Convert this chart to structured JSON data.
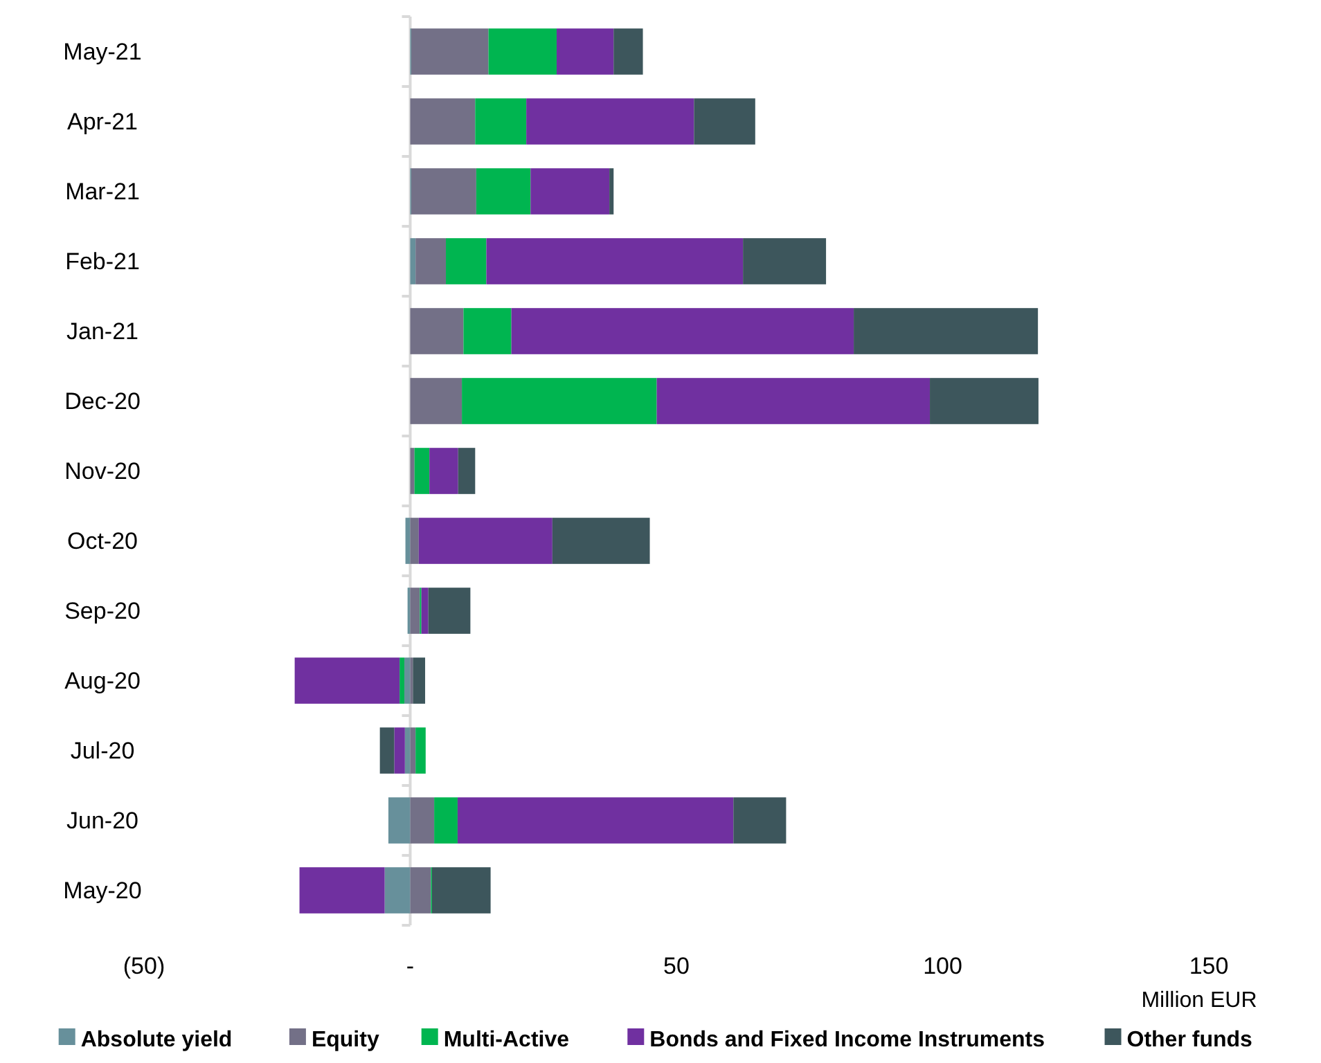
{
  "chart_data": {
    "type": "bar",
    "orientation": "horizontal",
    "stacked": true,
    "xlabel": "Million EUR",
    "legend": "bottom",
    "categories": [
      "May-21",
      "Apr-21",
      "Mar-21",
      "Feb-21",
      "Jan-21",
      "Dec-20",
      "Nov-20",
      "Oct-20",
      "Sep-20",
      "Aug-20",
      "Jul-20",
      "Jun-20",
      "May-20"
    ],
    "xlim": [
      -50,
      150
    ],
    "xticks": [
      {
        "value": -50,
        "label": "(50)"
      },
      {
        "value": 0,
        "label": "-"
      },
      50,
      100,
      150
    ],
    "series": [
      {
        "name": "Absolute yield",
        "color": "#67909b",
        "values": [
          0.2,
          0,
          0.2,
          1.0,
          0,
          0,
          0,
          -0.9,
          -0.5,
          -1.1,
          -1.0,
          -4.1,
          -4.8
        ]
      },
      {
        "name": "Equity",
        "color": "#737087",
        "values": [
          14.5,
          12.2,
          12.2,
          5.7,
          10,
          9.7,
          0.8,
          1.6,
          1.8,
          0.5,
          1.0,
          4.5,
          3.9
        ]
      },
      {
        "name": "Multi-Active",
        "color": "#00b550",
        "values": [
          12.8,
          9.6,
          10.2,
          7.6,
          9,
          36.6,
          2.8,
          0,
          0.3,
          -0.9,
          1.9,
          4.4,
          0.2
        ]
      },
      {
        "name": "Bonds and Fixed Income Instruments",
        "color": "#7030a0",
        "values": [
          10.7,
          31.5,
          14.8,
          48.2,
          64.3,
          51.3,
          5.4,
          25.1,
          1.3,
          -19.7,
          -2.0,
          51.8,
          -16.0
        ]
      },
      {
        "name": "Other funds",
        "color": "#3d565c",
        "values": [
          5.5,
          11.5,
          0.8,
          15.6,
          34.6,
          20.4,
          3.2,
          18.3,
          7.9,
          2.3,
          -2.7,
          9.9,
          11.0
        ]
      }
    ]
  }
}
